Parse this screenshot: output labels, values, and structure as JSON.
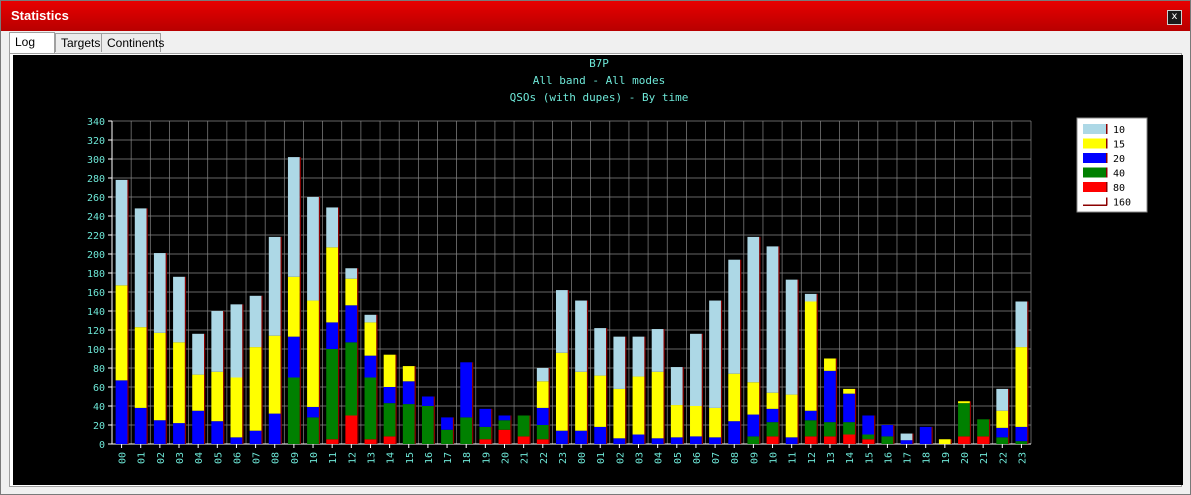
{
  "window": {
    "title": "Statistics",
    "close_label": "x"
  },
  "tabs": [
    {
      "label": "Log",
      "active": true
    },
    {
      "label": "Targets",
      "active": false
    },
    {
      "label": "Continents",
      "active": false
    }
  ],
  "colors": {
    "background": "#000000",
    "grid": "#888888",
    "text": "#6ee8d8",
    "10": "#add8e6",
    "15": "#ffff00",
    "20": "#0000ff",
    "40": "#008000",
    "80": "#ff0000",
    "160": "#8b0000"
  },
  "chart_data": {
    "type": "bar",
    "stacked": true,
    "title": "B7P",
    "subtitle": "All band - All modes",
    "subtitle2": "QSOs (with dupes) - By time",
    "xlabel": "",
    "ylabel": "",
    "ylim": [
      0,
      340
    ],
    "yticks": [
      0,
      20,
      40,
      60,
      80,
      100,
      120,
      140,
      160,
      180,
      200,
      220,
      240,
      260,
      280,
      300,
      320,
      340
    ],
    "grid": true,
    "legend_position": "top-right",
    "categories": [
      "00",
      "01",
      "02",
      "03",
      "04",
      "05",
      "06",
      "07",
      "08",
      "09",
      "10",
      "11",
      "12",
      "13",
      "14",
      "15",
      "16",
      "17",
      "18",
      "19",
      "20",
      "21",
      "22",
      "23",
      "00",
      "01",
      "02",
      "03",
      "04",
      "05",
      "06",
      "07",
      "08",
      "09",
      "10",
      "11",
      "12",
      "13",
      "14",
      "15",
      "16",
      "17",
      "18",
      "19",
      "20",
      "21",
      "22",
      "23"
    ],
    "series": [
      {
        "name": "160",
        "values": [
          0,
          0,
          0,
          0,
          0,
          0,
          0,
          0,
          0,
          0,
          0,
          0,
          0,
          0,
          0,
          0,
          0,
          0,
          0,
          0,
          0,
          0,
          0,
          0,
          0,
          0,
          0,
          0,
          0,
          0,
          0,
          0,
          0,
          0,
          0,
          0,
          0,
          0,
          0,
          0,
          0,
          0,
          0,
          0,
          0,
          0,
          0,
          0
        ]
      },
      {
        "name": "80",
        "values": [
          0,
          0,
          0,
          0,
          0,
          0,
          0,
          0,
          0,
          0,
          0,
          5,
          30,
          5,
          8,
          0,
          0,
          0,
          0,
          5,
          15,
          8,
          5,
          0,
          0,
          0,
          0,
          0,
          0,
          0,
          0,
          0,
          0,
          0,
          8,
          0,
          8,
          8,
          10,
          5,
          0,
          0,
          0,
          0,
          8,
          8,
          0,
          0
        ]
      },
      {
        "name": "40",
        "values": [
          0,
          0,
          0,
          0,
          0,
          0,
          0,
          0,
          0,
          70,
          28,
          95,
          77,
          65,
          35,
          42,
          40,
          15,
          28,
          13,
          10,
          22,
          15,
          0,
          0,
          0,
          0,
          0,
          0,
          0,
          0,
          0,
          0,
          8,
          15,
          0,
          17,
          15,
          13,
          5,
          8,
          0,
          0,
          0,
          35,
          18,
          7,
          3
        ]
      },
      {
        "name": "20",
        "values": [
          67,
          38,
          25,
          22,
          35,
          24,
          7,
          14,
          32,
          43,
          11,
          28,
          39,
          23,
          17,
          24,
          10,
          13,
          58,
          19,
          5,
          0,
          18,
          14,
          14,
          18,
          6,
          10,
          6,
          7,
          8,
          7,
          24,
          23,
          14,
          7,
          10,
          54,
          30,
          20,
          12,
          4,
          18,
          0,
          0,
          0,
          10,
          15
        ]
      },
      {
        "name": "15",
        "values": [
          100,
          85,
          92,
          85,
          38,
          52,
          63,
          88,
          82,
          63,
          112,
          79,
          28,
          35,
          34,
          16,
          0,
          0,
          0,
          0,
          0,
          0,
          28,
          82,
          62,
          54,
          52,
          61,
          70,
          34,
          32,
          31,
          50,
          34,
          17,
          45,
          115,
          13,
          5,
          0,
          0,
          0,
          0,
          5,
          2,
          0,
          18,
          84
        ]
      },
      {
        "name": "10",
        "values": [
          111,
          125,
          84,
          69,
          43,
          64,
          77,
          54,
          104,
          126,
          109,
          42,
          11,
          8,
          0,
          0,
          0,
          0,
          0,
          0,
          0,
          0,
          14,
          66,
          75,
          50,
          55,
          42,
          45,
          40,
          76,
          113,
          120,
          153,
          154,
          121,
          8,
          0,
          0,
          0,
          0,
          7,
          0,
          0,
          0,
          0,
          23,
          48
        ]
      }
    ]
  }
}
